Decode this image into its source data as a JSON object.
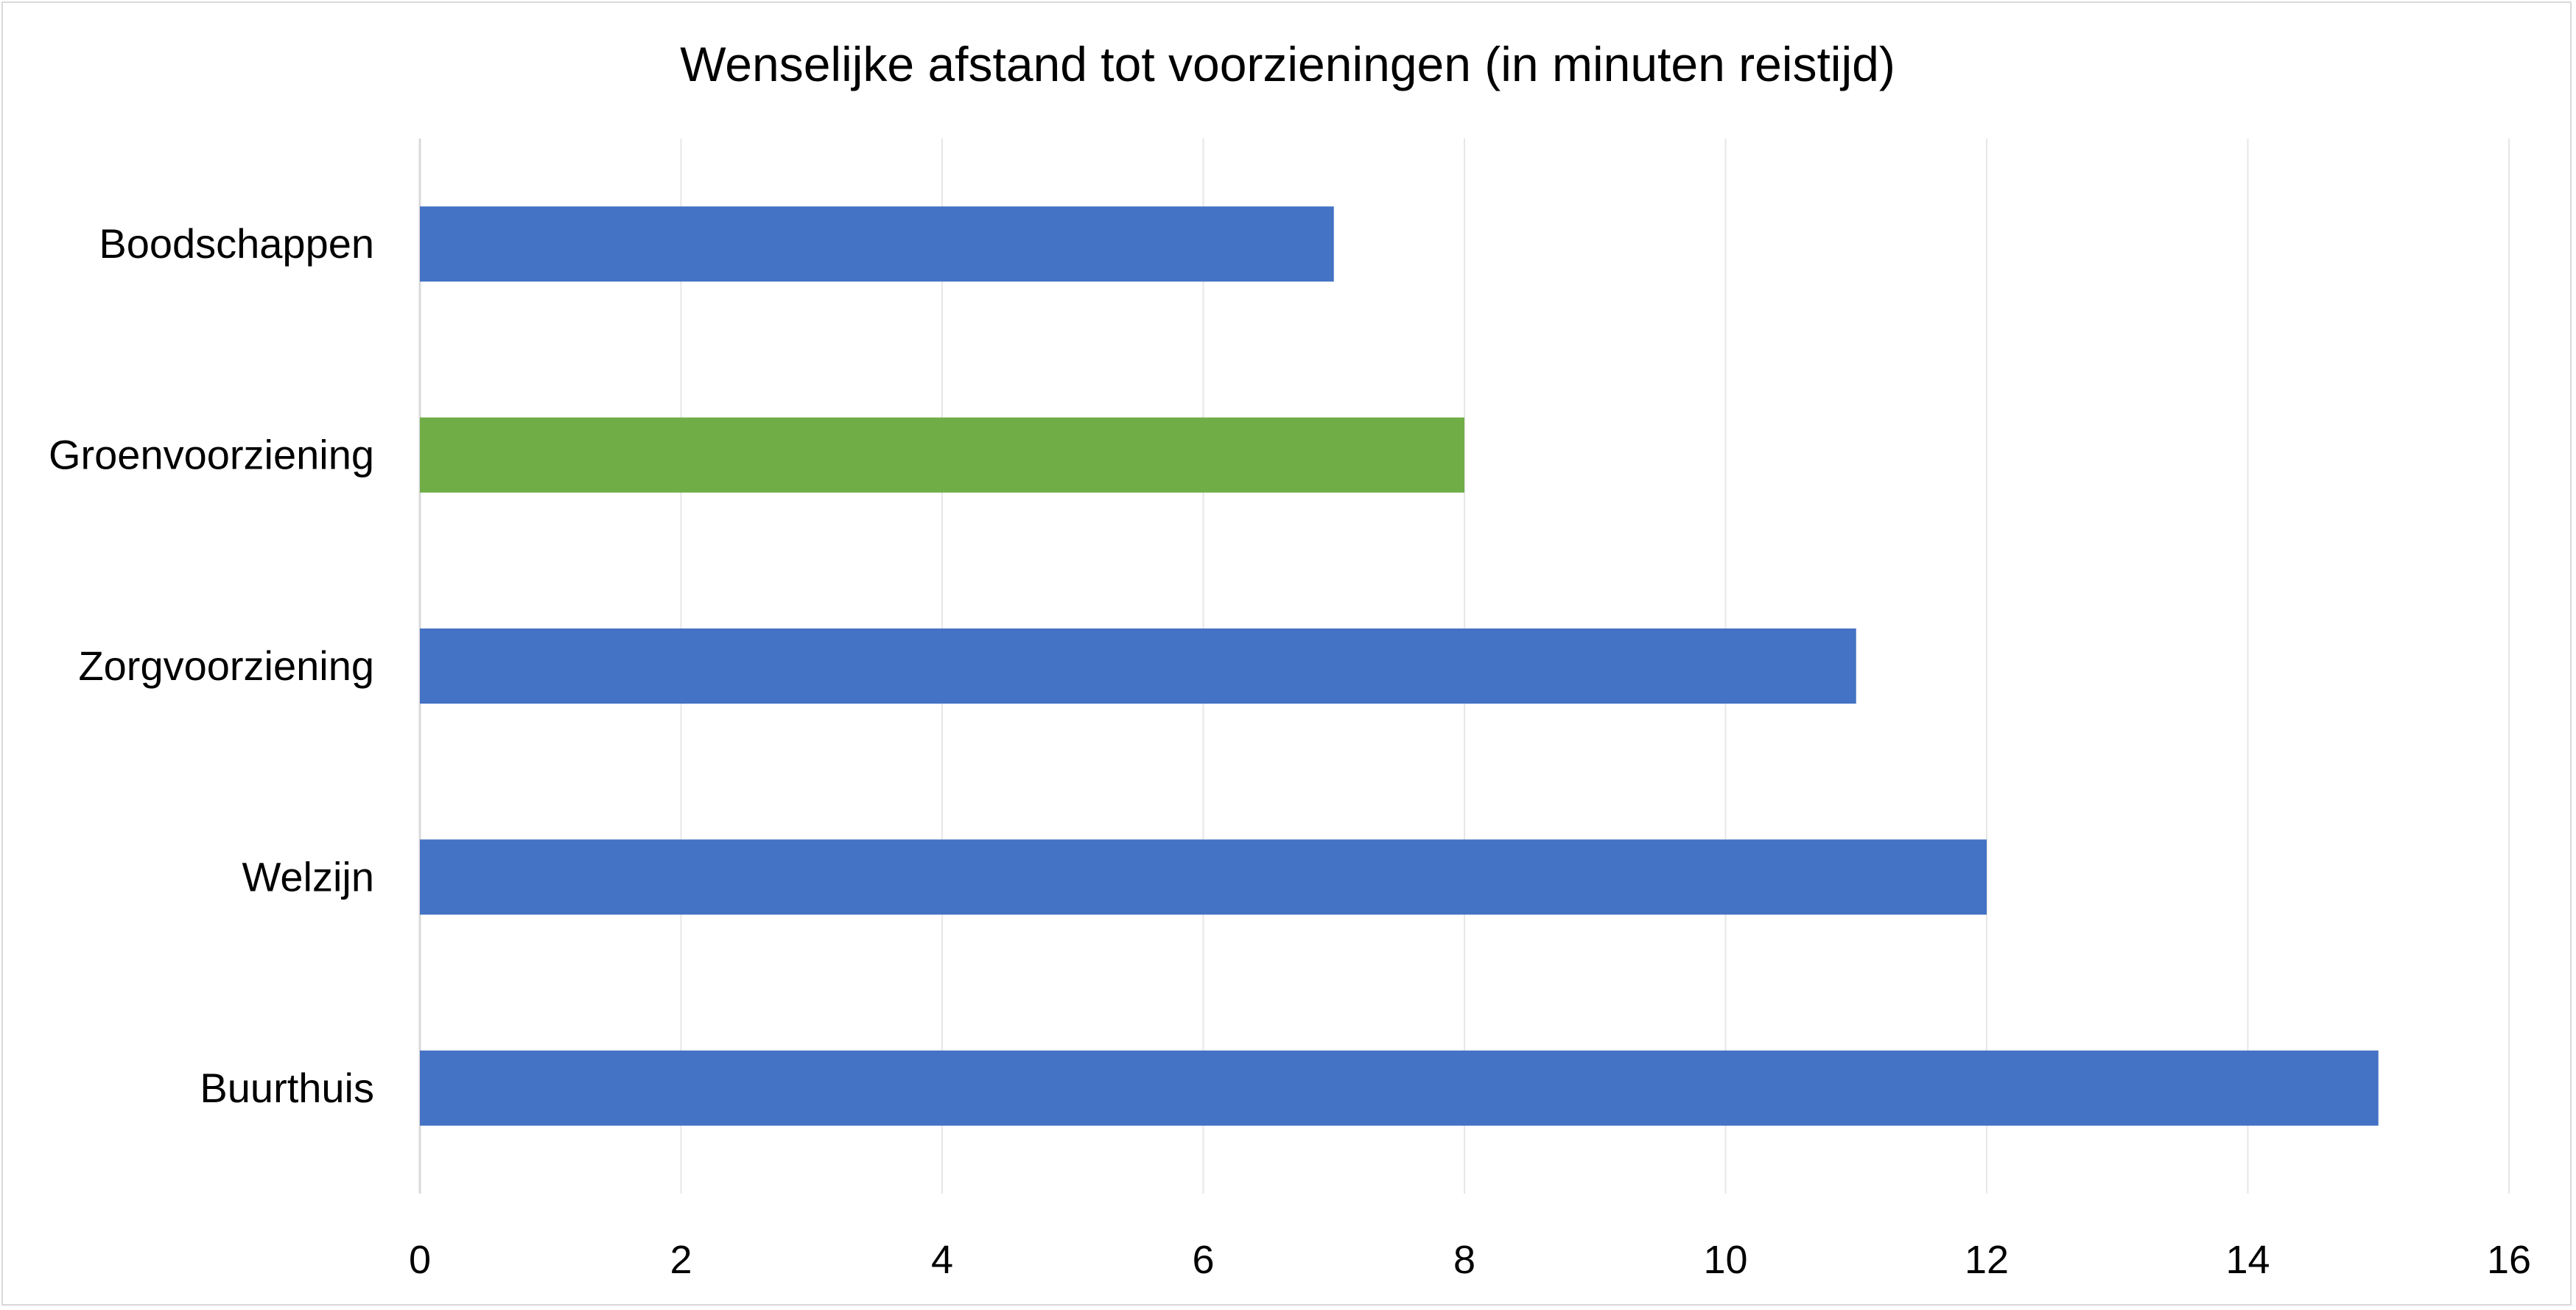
{
  "chart_data": {
    "type": "bar",
    "orientation": "horizontal",
    "title": "Wenselijke afstand tot voorzieningen (in minuten reistijd)",
    "xlabel": "",
    "ylabel": "",
    "categories": [
      "Boodschappen",
      "Groenvoorziening",
      "Zorgvoorziening",
      "Welzijn",
      "Buurthuis"
    ],
    "values": [
      7,
      8,
      11,
      12,
      15
    ],
    "bar_colors": [
      "#4472c4",
      "#70ad47",
      "#4472c4",
      "#4472c4",
      "#4472c4"
    ],
    "xlim": [
      0,
      16
    ],
    "x_ticks": [
      "0",
      "2",
      "4",
      "6",
      "8",
      "10",
      "12",
      "14",
      "16"
    ],
    "grid": "vertical",
    "legend": "none"
  },
  "colors": {
    "primary_bar": "#4472c4",
    "highlight_bar": "#70ad47",
    "gridline": "#e7e7e7",
    "axis": "#d9d9d9",
    "border": "#d9d9d9"
  }
}
